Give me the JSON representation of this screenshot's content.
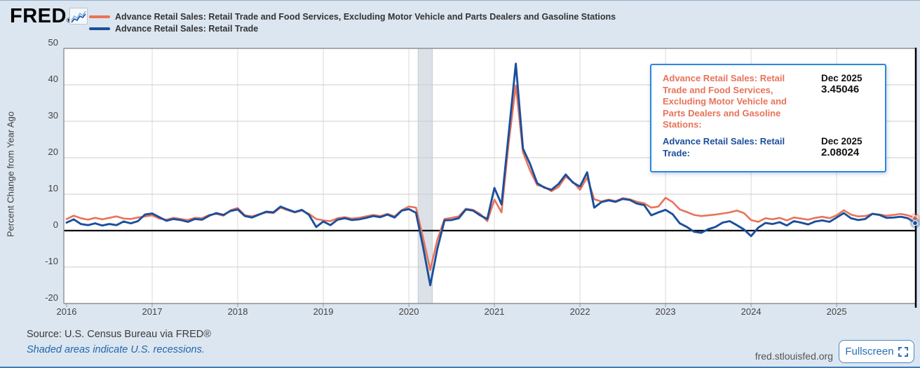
{
  "header": {
    "logo_text": "FRED",
    "logo_registered": "®",
    "legend": [
      {
        "label": "Advance Retail Sales: Retail Trade and Food Services, Excluding Motor Vehicle and Parts Dealers and Gasoline Stations",
        "color": "#e8735a"
      },
      {
        "label": "Advance Retail Sales: Retail Trade",
        "color": "#1b4f9c"
      }
    ]
  },
  "tooltip": {
    "rows": [
      {
        "label": "Advance Retail Sales: Retail Trade and Food Services, Excluding Motor Vehicle and Parts Dealers and Gasoline Stations:",
        "date": "Dec 2025",
        "value": "3.45046",
        "color": "#e8735a"
      },
      {
        "label": "Advance Retail Sales: Retail Trade:",
        "date": "Dec 2025",
        "value": "2.08024",
        "color": "#1b4f9c"
      }
    ]
  },
  "footer": {
    "source": "Source: U.S. Census Bureau via FRED®",
    "recession_note": "Shaded areas indicate U.S. recessions.",
    "site": "fred.stlouisfed.org",
    "fullscreen_label": "Fullscreen"
  },
  "chart_data": {
    "type": "line",
    "title": "",
    "xlabel": "",
    "ylabel": "Percent Change from Year Ago",
    "x_start": "2016-01",
    "x_end": "2025-12",
    "frequency": "monthly",
    "x_ticks": [
      "2016",
      "2017",
      "2018",
      "2019",
      "2020",
      "2021",
      "2022",
      "2023",
      "2024",
      "2025"
    ],
    "y_ticks": [
      50,
      40,
      30,
      20,
      10,
      0,
      -10,
      -20
    ],
    "ylim": [
      -20,
      50
    ],
    "grid": true,
    "zero_line": true,
    "legend_position": "top",
    "recession_bands": [
      {
        "from": "2020-02",
        "to": "2020-04"
      }
    ],
    "colors": {
      "band": "#dce1e7",
      "band_edge": "#c6cbd2",
      "grid": "#cccccc",
      "axis": "#999999",
      "zero": "#000000"
    },
    "series": [
      {
        "name": "Advance Retail Sales: Retail Trade and Food Services, Excluding Motor Vehicle and Parts Dealers and Gasoline Stations",
        "color": "#e8735a",
        "values": [
          3.2,
          4.1,
          3.4,
          3.0,
          3.5,
          3.1,
          3.5,
          3.9,
          3.3,
          3.2,
          3.6,
          3.9,
          4.2,
          3.3,
          3.0,
          3.5,
          3.2,
          2.9,
          3.5,
          3.4,
          4.3,
          4.6,
          4.1,
          5.6,
          6.2,
          4.2,
          3.9,
          4.5,
          5.0,
          4.8,
          6.3,
          5.6,
          5.0,
          5.5,
          4.6,
          3.2,
          2.8,
          2.6,
          3.4,
          3.7,
          3.3,
          3.5,
          3.9,
          4.3,
          4.0,
          4.6,
          3.9,
          5.6,
          6.6,
          6.3,
          -2.0,
          -10.8,
          -2.5,
          3.2,
          3.5,
          3.9,
          6.0,
          5.7,
          4.6,
          2.6,
          8.5,
          5.0,
          24.0,
          39.8,
          21.5,
          16.5,
          12.5,
          12.0,
          10.8,
          12.0,
          14.8,
          13.4,
          11.2,
          14.6,
          8.6,
          8.0,
          8.5,
          8.1,
          8.9,
          8.6,
          7.9,
          7.5,
          6.3,
          6.6,
          9.0,
          7.8,
          5.8,
          5.1,
          4.3,
          4.0,
          4.2,
          4.4,
          4.7,
          5.0,
          5.5,
          4.8,
          2.9,
          2.4,
          3.4,
          3.1,
          3.5,
          2.8,
          3.6,
          3.3,
          3.0,
          3.5,
          3.8,
          3.4,
          4.2,
          5.6,
          4.4,
          3.9,
          4.0,
          4.6,
          4.4,
          4.1,
          4.3,
          4.6,
          4.2,
          3.45046
        ]
      },
      {
        "name": "Advance Retail Sales: Retail Trade",
        "color": "#1b4f9c",
        "values": [
          2.2,
          3.1,
          1.8,
          1.5,
          2.0,
          1.4,
          1.8,
          1.5,
          2.5,
          2.0,
          2.6,
          4.4,
          4.7,
          3.7,
          2.7,
          3.2,
          2.9,
          2.4,
          3.2,
          3.0,
          4.1,
          4.8,
          4.3,
          5.4,
          5.8,
          4.0,
          3.6,
          4.4,
          5.2,
          5.0,
          6.6,
          5.8,
          5.1,
          5.7,
          4.3,
          1.0,
          2.5,
          1.5,
          3.0,
          3.4,
          2.9,
          3.1,
          3.5,
          4.0,
          3.7,
          4.4,
          3.6,
          5.5,
          5.9,
          4.9,
          -4.5,
          -15.0,
          -5.0,
          2.8,
          2.9,
          3.4,
          5.8,
          5.5,
          4.2,
          3.2,
          11.7,
          7.2,
          26.5,
          45.8,
          22.5,
          18.3,
          13.0,
          11.8,
          11.2,
          12.8,
          15.4,
          13.2,
          12.1,
          16.0,
          6.3,
          7.8,
          8.3,
          7.9,
          8.7,
          8.4,
          7.4,
          7.0,
          4.2,
          5.0,
          5.7,
          4.5,
          2.0,
          1.0,
          -0.3,
          -0.6,
          0.4,
          1.0,
          2.2,
          2.6,
          1.5,
          0.3,
          -1.5,
          0.8,
          2.1,
          1.8,
          2.3,
          1.4,
          2.6,
          2.2,
          1.7,
          2.5,
          2.8,
          2.4,
          3.6,
          4.8,
          3.4,
          2.9,
          3.2,
          4.6,
          4.3,
          3.5,
          3.6,
          3.8,
          3.4,
          2.08024
        ]
      }
    ],
    "end_markers": {
      "x": "2025-12",
      "values": [
        3.45046,
        2.08024
      ]
    }
  }
}
